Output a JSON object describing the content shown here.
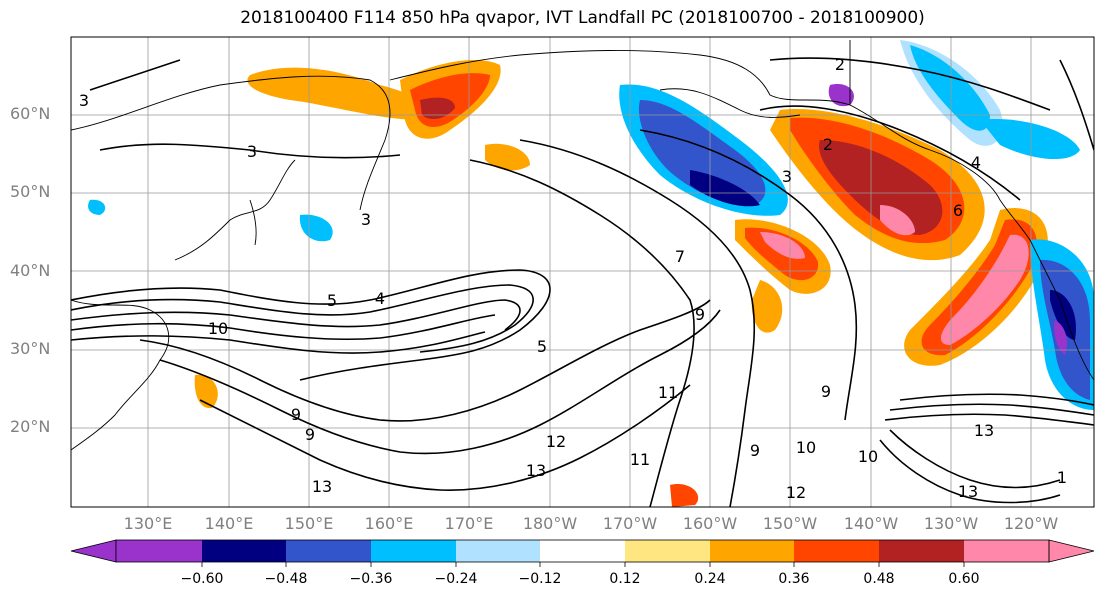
{
  "title": "2018100400 F114 850 hPa qvapor, IVT Landfall PC (2018100700 - 2018100900)",
  "latitude_labels": [
    "60°N",
    "50°N",
    "40°N",
    "30°N",
    "20°N"
  ],
  "longitude_labels": [
    "130°E",
    "140°E",
    "150°E",
    "160°E",
    "170°E",
    "180°W",
    "170°W",
    "160°W",
    "150°W",
    "140°W",
    "130°W",
    "120°W"
  ],
  "contour_labels": [
    "3",
    "3",
    "3",
    "2",
    "2",
    "3",
    "4",
    "6",
    "4",
    "5",
    "5",
    "7",
    "9",
    "10",
    "9",
    "9",
    "11",
    "12",
    "13",
    "11",
    "9",
    "10",
    "9",
    "10",
    "12",
    "13",
    "13",
    "13",
    "1"
  ],
  "colorbar": {
    "tick_labels": [
      "−0.60",
      "−0.48",
      "−0.36",
      "−0.24",
      "−0.12",
      "0.12",
      "0.24",
      "0.36",
      "0.48",
      "0.60"
    ],
    "colors": [
      "#9933cc",
      "#000080",
      "#3355cc",
      "#00bfff",
      "#b0e2ff",
      "#ffffff",
      "#ffe680",
      "#ffa500",
      "#ff4500",
      "#b22222",
      "#ff88aa"
    ]
  },
  "colors": {
    "contour": "#000000",
    "coastline": "#000000",
    "grid": "#999999",
    "axis_label": "#808080"
  }
}
